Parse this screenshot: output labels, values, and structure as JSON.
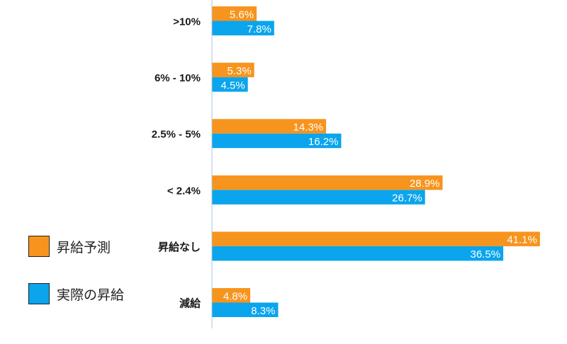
{
  "chart_data": {
    "type": "bar",
    "orientation": "horizontal",
    "categories": [
      ">10%",
      "6% - 10%",
      "2.5% - 5%",
      "< 2.4%",
      "昇給なし",
      "減給"
    ],
    "series": [
      {
        "name": "昇給予測",
        "color": "#F7941D",
        "values": [
          5.6,
          5.3,
          14.3,
          28.9,
          41.1,
          4.8
        ],
        "labels": [
          "5.6%",
          "5.3%",
          "14.3%",
          "28.9%",
          "41.1%",
          "4.8%"
        ]
      },
      {
        "name": "実際の昇給",
        "color": "#0AA5EC",
        "values": [
          7.8,
          4.5,
          16.2,
          26.7,
          36.5,
          8.3
        ],
        "labels": [
          "7.8%",
          "4.5%",
          "16.2%",
          "26.7%",
          "36.5%",
          "8.3%"
        ]
      }
    ],
    "xlim": [
      0,
      42
    ],
    "grid": false,
    "legend_position": "bottom-left"
  }
}
